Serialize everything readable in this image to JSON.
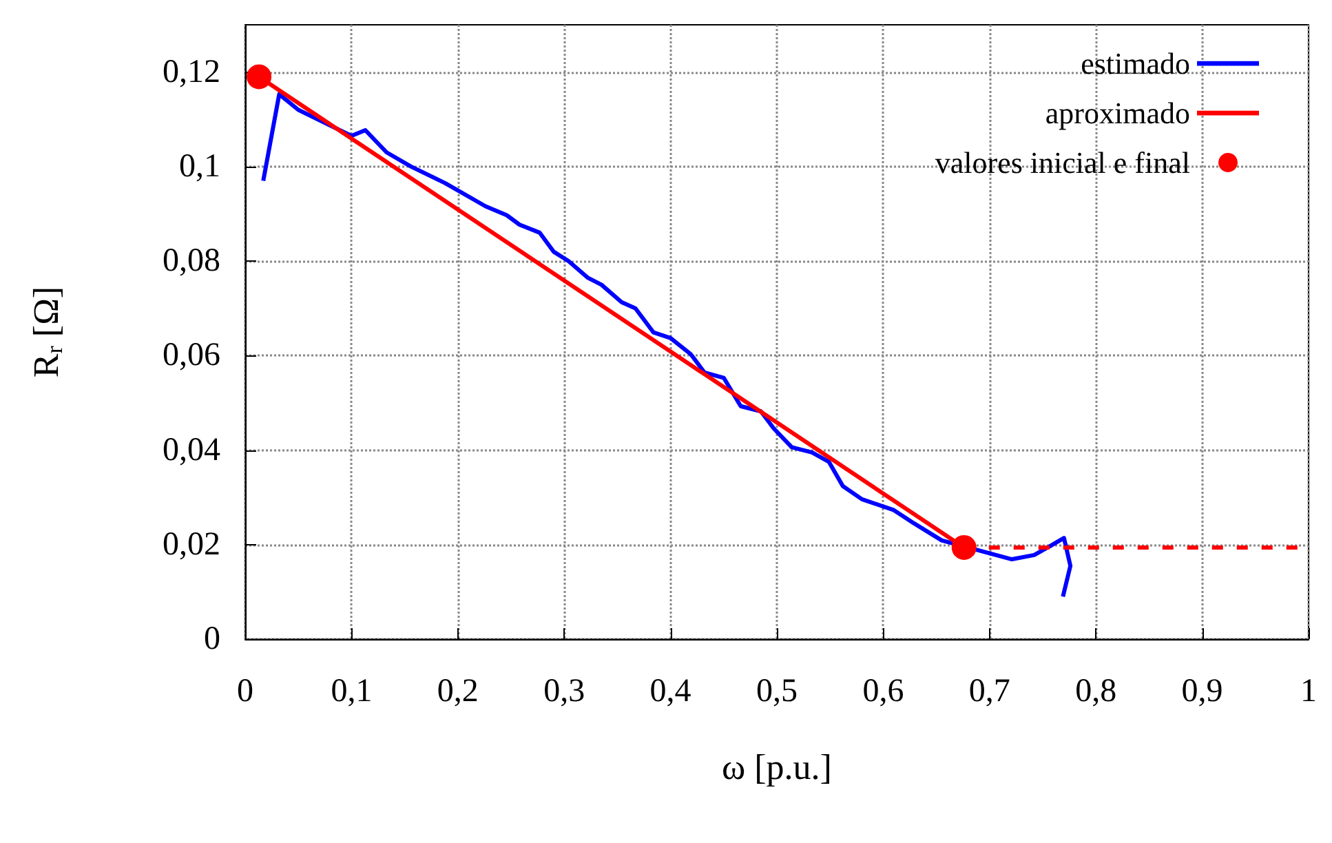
{
  "chart_data": {
    "type": "line",
    "xlabel": "ω [p.u.]",
    "ylabel": "R$_{r}$ [Ω]",
    "xlim": [
      0,
      1
    ],
    "ylim": [
      0,
      0.13
    ],
    "xticks": [
      0,
      {
        "value": 0.1,
        "label": "0,1"
      },
      {
        "value": 0.2,
        "label": "0,2"
      },
      {
        "value": 0.3,
        "label": "0,3"
      },
      {
        "value": 0.4,
        "label": "0,4"
      },
      {
        "value": 0.5,
        "label": "0,5"
      },
      {
        "value": 0.6,
        "label": "0,6"
      },
      {
        "value": 0.7,
        "label": "0,7"
      },
      {
        "value": 0.8,
        "label": "0,8"
      },
      {
        "value": 0.9,
        "label": "0,9"
      },
      1
    ],
    "yticks": [
      0,
      {
        "value": 0.02,
        "label": "0,02"
      },
      {
        "value": 0.04,
        "label": "0,04"
      },
      {
        "value": 0.06,
        "label": "0,06"
      },
      {
        "value": 0.08,
        "label": "0,08"
      },
      {
        "value": 0.1,
        "label": "0,1"
      },
      {
        "value": 0.12,
        "label": "0,12"
      }
    ],
    "grid": true,
    "legend": "top right",
    "line_style": "solid",
    "marker": "none",
    "series": [
      {
        "name": "estimado",
        "color": "#0000ff",
        "x": [
          0.017,
          0.032,
          0.05,
          0.1,
          0.113,
          0.133,
          0.156,
          0.188,
          0.226,
          0.246,
          0.258,
          0.277,
          0.29,
          0.304,
          0.322,
          0.335,
          0.354,
          0.367,
          0.384,
          0.4,
          0.419,
          0.432,
          0.45,
          0.466,
          0.485,
          0.497,
          0.514,
          0.533,
          0.549,
          0.562,
          0.58,
          0.61,
          0.629,
          0.655,
          0.706,
          0.721,
          0.742,
          0.757,
          0.77,
          0.776,
          0.769
        ],
        "values": [
          0.097,
          0.1153,
          0.112,
          0.1065,
          0.1077,
          0.103,
          0.1,
          0.0965,
          0.0916,
          0.0897,
          0.0877,
          0.086,
          0.082,
          0.08,
          0.0765,
          0.075,
          0.0713,
          0.07,
          0.0649,
          0.0637,
          0.0603,
          0.0564,
          0.0553,
          0.0493,
          0.0482,
          0.0446,
          0.0406,
          0.0395,
          0.0375,
          0.0324,
          0.0296,
          0.0273,
          0.0245,
          0.0209,
          0.0178,
          0.0169,
          0.0178,
          0.0197,
          0.0214,
          0.0155,
          0.009
        ]
      },
      {
        "name": "aproximado",
        "color": "#ff0000",
        "x": [
          0.013,
          0.676
        ],
        "values": [
          0.119,
          0.0194
        ]
      },
      {
        "color": "#ff0000",
        "line_style": "dashed",
        "x": [
          0.676,
          1
        ],
        "values": [
          0.0194,
          0.0194
        ]
      },
      {
        "name": "valores inicial e final",
        "type": "scatter",
        "marker": "circle",
        "color": "#ff0000",
        "x": [
          0.013,
          0.676
        ],
        "values": [
          0.119,
          0.0194
        ]
      }
    ]
  }
}
